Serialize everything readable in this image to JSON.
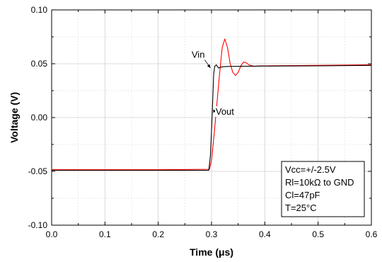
{
  "chart_data": {
    "type": "line",
    "xlabel": "Time (μs)",
    "ylabel": "Voltage (V)",
    "xlim": [
      0.0,
      0.6
    ],
    "ylim": [
      -0.1,
      0.1
    ],
    "x_ticks": [
      "0.0",
      "0.1",
      "0.2",
      "0.3",
      "0.4",
      "0.5",
      "0.6"
    ],
    "y_ticks": [
      "-0.10",
      "-0.05",
      "0.00",
      "0.05",
      "0.10"
    ],
    "grid": true,
    "series": [
      {
        "name": "Vin",
        "color": "#000000",
        "x": [
          0.0,
          0.1,
          0.2,
          0.295,
          0.298,
          0.301,
          0.304,
          0.306,
          0.309,
          0.313,
          0.318,
          0.33,
          0.4,
          0.5,
          0.6
        ],
        "y": [
          -0.049,
          -0.049,
          -0.049,
          -0.049,
          -0.035,
          0.0,
          0.04,
          0.0475,
          0.049,
          0.046,
          0.047,
          0.0475,
          0.0478,
          0.048,
          0.0485
        ]
      },
      {
        "name": "Vout",
        "color": "#ff0000",
        "x": [
          0.0,
          0.1,
          0.2,
          0.296,
          0.3,
          0.305,
          0.31,
          0.315,
          0.32,
          0.325,
          0.33,
          0.335,
          0.34,
          0.345,
          0.35,
          0.355,
          0.36,
          0.365,
          0.37,
          0.38,
          0.39,
          0.4,
          0.5,
          0.6
        ],
        "y": [
          -0.0485,
          -0.0485,
          -0.0485,
          -0.048,
          -0.04,
          -0.015,
          0.012,
          0.04,
          0.065,
          0.073,
          0.065,
          0.05,
          0.042,
          0.039,
          0.042,
          0.048,
          0.0515,
          0.051,
          0.049,
          0.0475,
          0.048,
          0.048,
          0.0485,
          0.049
        ]
      }
    ],
    "annotations": [
      {
        "text": "Vin",
        "target": [
          0.298,
          0.046
        ],
        "label_at": [
          0.275,
          0.059
        ]
      },
      {
        "text": "Vout",
        "target": [
          0.31,
          0.006
        ],
        "label_at": [
          0.337,
          0.006
        ]
      }
    ],
    "legend_box": {
      "placement": "bottom-right",
      "lines": [
        "Vcc=+/-2.5V",
        "Rl=10kΩ to GND",
        "Cl=47pF",
        "T=25°C"
      ]
    }
  }
}
